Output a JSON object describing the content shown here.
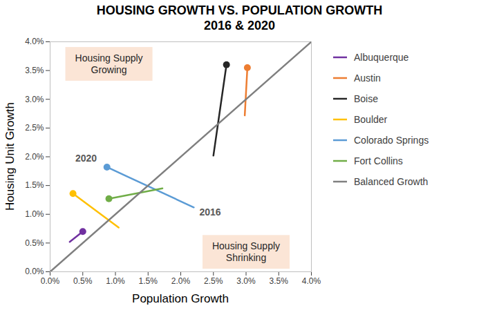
{
  "chart_data": {
    "type": "line",
    "title": "HOUSING GROWTH VS. POPULATION GROWTH",
    "subtitle": "2016 & 2020",
    "x_label": "Population Growth",
    "y_label": "Housing Unit Growth",
    "xlim": [
      0,
      4
    ],
    "ylim": [
      0,
      4
    ],
    "xticks": [
      {
        "value": 0,
        "label": "0.0%"
      },
      {
        "value": 0.5,
        "label": "0.5%"
      },
      {
        "value": 1,
        "label": "1.0%"
      },
      {
        "value": 1.5,
        "label": "1.5%"
      },
      {
        "value": 2,
        "label": "2.0%"
      },
      {
        "value": 2.5,
        "label": "2.5%"
      },
      {
        "value": 3,
        "label": "3.0%"
      },
      {
        "value": 3.5,
        "label": "3.5%"
      },
      {
        "value": 4,
        "label": "4.0%"
      }
    ],
    "yticks": [
      {
        "value": 0,
        "label": "0.0%"
      },
      {
        "value": 0.5,
        "label": "0.5%"
      },
      {
        "value": 1,
        "label": "1.0%"
      },
      {
        "value": 1.5,
        "label": "1.5%"
      },
      {
        "value": 2,
        "label": "2.0%"
      },
      {
        "value": 2.5,
        "label": "2.5%"
      },
      {
        "value": 3,
        "label": "3.0%"
      },
      {
        "value": 3.5,
        "label": "3.5%"
      },
      {
        "value": 4,
        "label": "4.0%"
      }
    ],
    "grid": false,
    "legend": "right",
    "series": [
      {
        "name": "Albuquerque",
        "color": "#7030a0",
        "x": [
          0.3,
          0.5
        ],
        "values": [
          0.52,
          0.7
        ],
        "marker": "circle"
      },
      {
        "name": "Austin",
        "color": "#ed7d31",
        "x": [
          2.98,
          3.02
        ],
        "values": [
          2.72,
          3.55
        ],
        "marker": "circle"
      },
      {
        "name": "Boise",
        "color": "#262626",
        "x": [
          2.5,
          2.7
        ],
        "values": [
          2.02,
          3.6
        ],
        "marker": "circle"
      },
      {
        "name": "Boulder",
        "color": "#ffc000",
        "x": [
          1.05,
          0.35
        ],
        "values": [
          0.77,
          1.36
        ],
        "marker": "circle"
      },
      {
        "name": "Colorado Springs",
        "color": "#5b9bd5",
        "x": [
          2.2,
          0.87
        ],
        "values": [
          1.12,
          1.82
        ],
        "marker": "circle"
      },
      {
        "name": "Fort Collins",
        "color": "#70ad47",
        "x": [
          1.72,
          0.9
        ],
        "values": [
          1.45,
          1.27
        ],
        "marker": "circle"
      },
      {
        "name": "Balanced Growth",
        "color": "#7f7f7f",
        "x": [
          0,
          4
        ],
        "values": [
          0,
          4
        ],
        "marker": "none"
      }
    ],
    "point_labels": [
      {
        "text": "2020",
        "x": 0.55,
        "y": 1.97
      },
      {
        "text": "2016",
        "x": 2.45,
        "y": 1.03
      }
    ],
    "region_labels": [
      {
        "text": "Housing Supply\nGrowing",
        "x": 0.9,
        "y": 3.62
      },
      {
        "text": "Housing Supply\nShrinking",
        "x": 3.0,
        "y": 0.35
      }
    ]
  }
}
